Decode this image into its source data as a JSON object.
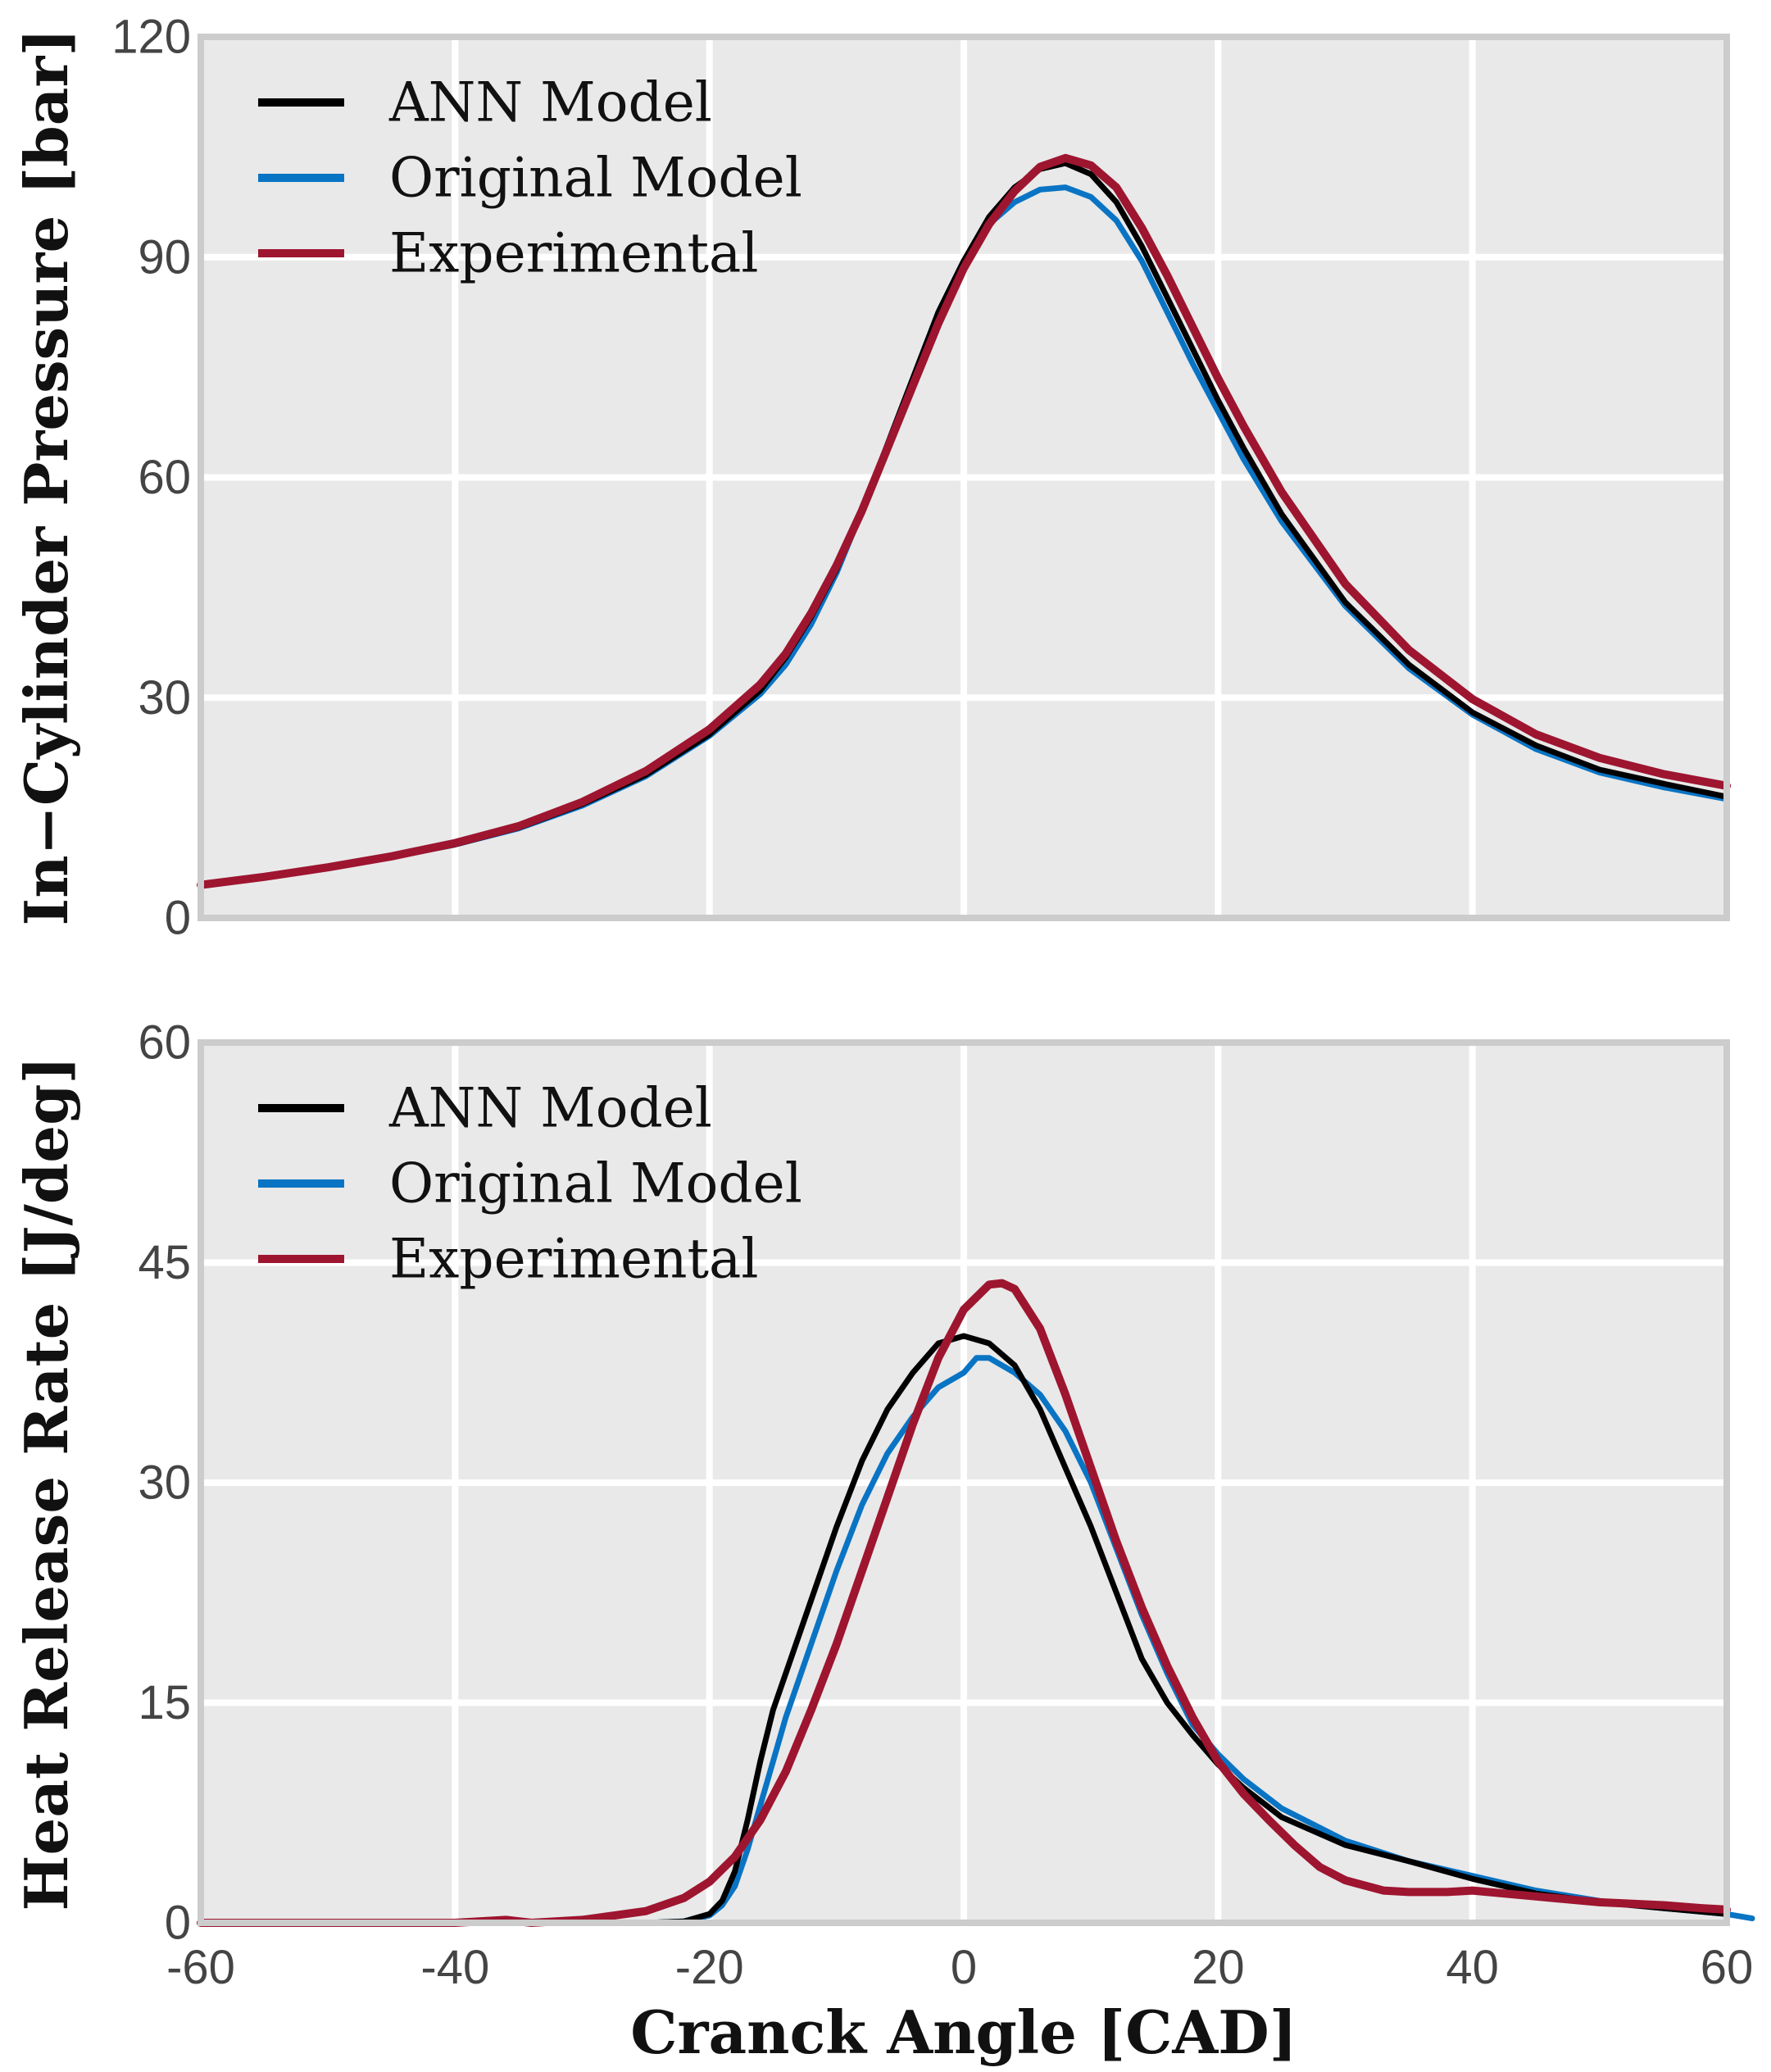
{
  "chart_data": [
    {
      "type": "line",
      "ylabel": "In−Cylinder Pressure [bar]",
      "xlim": [
        -60,
        60
      ],
      "ylim": [
        0,
        120
      ],
      "xticks": [
        -60,
        -40,
        -20,
        0,
        20,
        40,
        60
      ],
      "yticks": [
        0,
        30,
        60,
        90,
        120
      ],
      "grid": true,
      "legend_position": "top-left",
      "series": [
        {
          "name": "ANN Model",
          "color": "#000000",
          "x": [
            -60,
            -55,
            -50,
            -45,
            -40,
            -35,
            -30,
            -25,
            -20,
            -16,
            -14,
            -12,
            -10,
            -8,
            -6,
            -4,
            -2,
            0,
            2,
            4,
            6,
            8,
            10,
            12,
            14,
            16,
            18,
            20,
            22,
            25,
            30,
            35,
            40,
            45,
            50,
            55,
            60
          ],
          "y": [
            4.5,
            5.6,
            6.9,
            8.3,
            10.0,
            12.3,
            15.5,
            19.5,
            25.0,
            31.0,
            35.5,
            41.0,
            47.5,
            55.5,
            64.5,
            73.5,
            82.5,
            89.5,
            95.5,
            99.5,
            102.0,
            102.8,
            101.3,
            97.5,
            91.5,
            84.5,
            77.5,
            70.5,
            64.0,
            55.0,
            43.0,
            34.5,
            28.0,
            23.5,
            20.2,
            18.3,
            16.5
          ]
        },
        {
          "name": "Original Model",
          "color": "#0a74c4",
          "x": [
            -60,
            -55,
            -50,
            -45,
            -40,
            -35,
            -30,
            -25,
            -20,
            -16,
            -14,
            -12,
            -10,
            -8,
            -6,
            -4,
            -2,
            0,
            2,
            4,
            6,
            8,
            10,
            12,
            14,
            16,
            18,
            20,
            22,
            25,
            30,
            35,
            40,
            45,
            50,
            55,
            60
          ],
          "y": [
            4.5,
            5.6,
            6.9,
            8.3,
            10.0,
            12.2,
            15.3,
            19.3,
            24.8,
            30.5,
            34.5,
            40.0,
            47.0,
            55.5,
            64.5,
            73.5,
            82.5,
            89.5,
            94.5,
            97.5,
            99.2,
            99.5,
            98.2,
            95.0,
            89.5,
            82.5,
            75.5,
            69.0,
            62.5,
            54.0,
            42.5,
            34.0,
            27.7,
            23.0,
            19.8,
            17.8,
            16.2
          ]
        },
        {
          "name": "Experimental",
          "color": "#9e1530",
          "x": [
            -60,
            -55,
            -50,
            -45,
            -40,
            -35,
            -30,
            -25,
            -20,
            -16,
            -14,
            -12,
            -10,
            -8,
            -6,
            -4,
            -2,
            0,
            2,
            4,
            6,
            8,
            10,
            12,
            14,
            16,
            18,
            20,
            22,
            25,
            30,
            35,
            40,
            45,
            50,
            55,
            60
          ],
          "y": [
            4.5,
            5.6,
            6.9,
            8.4,
            10.2,
            12.5,
            15.8,
            20.0,
            25.7,
            31.8,
            36.0,
            41.5,
            48.0,
            55.5,
            64.0,
            72.5,
            81.0,
            88.5,
            94.5,
            99.0,
            102.3,
            103.5,
            102.5,
            99.5,
            94.0,
            87.5,
            80.5,
            73.5,
            67.0,
            58.0,
            45.5,
            36.5,
            29.8,
            25.0,
            21.8,
            19.6,
            18.0
          ]
        }
      ]
    },
    {
      "type": "line",
      "xlabel": "Cranck Angle [CAD]",
      "ylabel": "Heat Release Rate [J/deg]",
      "xlim": [
        -60,
        60
      ],
      "ylim": [
        0,
        60
      ],
      "xticks": [
        -60,
        -40,
        -20,
        0,
        20,
        40,
        60
      ],
      "yticks": [
        0,
        15,
        30,
        45,
        60
      ],
      "grid": true,
      "legend_position": "top-left",
      "series": [
        {
          "name": "ANN Model",
          "color": "#000000",
          "x": [
            -60,
            -40,
            -30,
            -25,
            -22,
            -20,
            -19,
            -18,
            -17,
            -16,
            -15,
            -14,
            -12,
            -10,
            -8,
            -6,
            -4,
            -2,
            0,
            2,
            4,
            6,
            8,
            10,
            12,
            14,
            16,
            18,
            20,
            22,
            25,
            30,
            35,
            40,
            45,
            50,
            55,
            60
          ],
          "y": [
            0,
            0,
            0,
            0,
            0.1,
            0.6,
            1.5,
            3.5,
            7.0,
            11.0,
            14.5,
            17.0,
            22.0,
            27.0,
            31.5,
            35.0,
            37.5,
            39.5,
            40.0,
            39.5,
            38.0,
            35.0,
            31.0,
            27.0,
            22.5,
            18.0,
            15.0,
            12.8,
            10.8,
            9.2,
            7.2,
            5.3,
            4.2,
            3.0,
            2.0,
            1.4,
            1.0,
            0.6
          ]
        },
        {
          "name": "Original Model",
          "color": "#0a74c4",
          "x": [
            -60,
            -40,
            -30,
            -25,
            -22,
            -20,
            -19,
            -18,
            -17,
            -16,
            -15,
            -14,
            -12,
            -10,
            -8,
            -6,
            -4,
            -2,
            0,
            1,
            2,
            4,
            6,
            8,
            10,
            12,
            14,
            16,
            18,
            20,
            22,
            25,
            30,
            35,
            40,
            45,
            50,
            55,
            60,
            62
          ],
          "y": [
            0,
            0,
            0,
            0,
            0.1,
            0.5,
            1.2,
            2.5,
            5.0,
            8.0,
            11.0,
            14.0,
            19.0,
            24.0,
            28.5,
            32.0,
            34.5,
            36.5,
            37.5,
            38.5,
            38.5,
            37.5,
            36.0,
            33.5,
            30.0,
            25.5,
            21.0,
            17.0,
            13.5,
            11.5,
            9.8,
            7.8,
            5.6,
            4.2,
            3.2,
            2.2,
            1.5,
            1.0,
            0.6,
            0.3
          ]
        },
        {
          "name": "Experimental",
          "color": "#9e1530",
          "x": [
            -60,
            -50,
            -40,
            -36,
            -34,
            -30,
            -25,
            -22,
            -20,
            -18,
            -16,
            -14,
            -12,
            -10,
            -8,
            -6,
            -4,
            -2,
            0,
            2,
            3,
            4,
            6,
            8,
            10,
            12,
            14,
            16,
            18,
            20,
            22,
            24,
            26,
            28,
            30,
            33,
            35,
            38,
            40,
            45,
            50,
            55,
            58,
            60
          ],
          "y": [
            0,
            0,
            0,
            0.2,
            0,
            0.2,
            0.8,
            1.7,
            2.8,
            4.5,
            7.0,
            10.3,
            14.5,
            19.0,
            24.0,
            29.0,
            34.0,
            38.5,
            41.8,
            43.5,
            43.6,
            43.2,
            40.5,
            36.0,
            31.0,
            26.0,
            21.5,
            17.5,
            14.0,
            11.0,
            8.8,
            7.0,
            5.3,
            3.8,
            2.9,
            2.2,
            2.1,
            2.1,
            2.2,
            1.8,
            1.4,
            1.2,
            1.0,
            0.9
          ]
        }
      ]
    }
  ]
}
